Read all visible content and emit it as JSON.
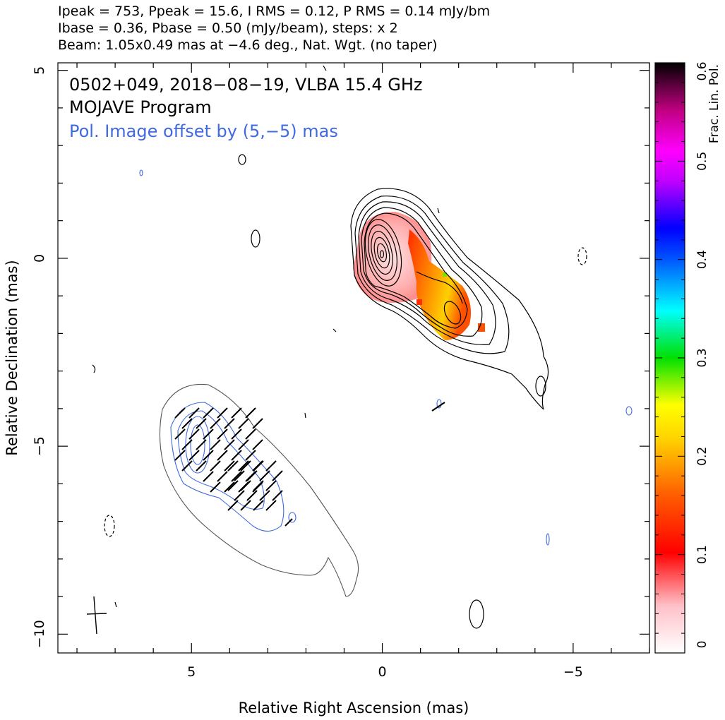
{
  "header": {
    "line1": "Ipeak = 753, Ppeak = 15.6, I RMS = 0.12, P RMS = 0.14 mJy/bm",
    "line2": "Ibase = 0.36, Pbase = 0.50 (mJy/beam), steps: x 2",
    "line3": "Beam: 1.05x0.49 mas at −4.6 deg., Nat. Wgt. (no taper)"
  },
  "chart_data": {
    "type": "contour",
    "title": "0502+049, 2018−08−19, VLBA 15.4 GHz",
    "subtitle": "MOJAVE Program",
    "annotation": "Pol. Image offset by (5,−5) mas",
    "xlabel": "Relative Right Ascension (mas)",
    "ylabel": "Relative Declination (mas)",
    "xlim": [
      8.5,
      -7.0
    ],
    "ylim": [
      -10.5,
      5.2
    ],
    "x_ticks": [
      5,
      0,
      -5
    ],
    "x_tick_labels": [
      "5",
      "0",
      "−5"
    ],
    "y_ticks": [
      5,
      0,
      -5,
      -10
    ],
    "y_tick_labels": [
      "5",
      "0",
      "−5",
      "−10"
    ],
    "beam": {
      "major_mas": 1.05,
      "minor_mas": 0.49,
      "pa_deg": -4.6,
      "center": [
        7.5,
        -9.5
      ]
    },
    "colorbar": {
      "label": "Frac. Lin. Pol.",
      "range": [
        0,
        0.6
      ],
      "ticks": [
        0,
        0.1,
        0.2,
        0.3,
        0.4,
        0.5,
        0.6
      ],
      "tick_labels": [
        "0",
        "0.1",
        "0.2",
        "0.3",
        "0.4",
        "0.5",
        "0.6"
      ]
    },
    "stokes_i_core": {
      "peak_mJy_per_beam": 753,
      "center": [
        0,
        0
      ]
    },
    "fractional_pol_region": {
      "range": [
        0,
        0.2
      ],
      "center": [
        -1.2,
        -1.0
      ]
    },
    "polarized_image_offset": [
      5,
      -5
    ],
    "colors": {
      "stokes_i": "#000000",
      "pol_contour": "#4169e1",
      "pol_outer": "#555555"
    }
  }
}
